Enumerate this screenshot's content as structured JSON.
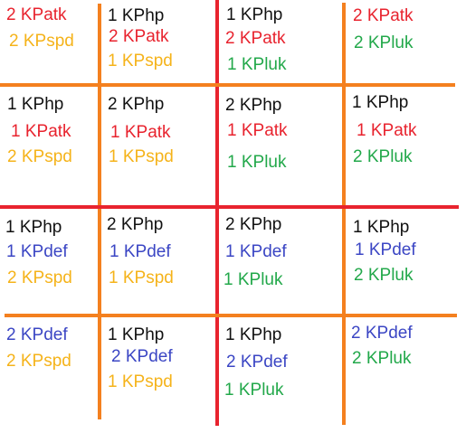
{
  "colors": {
    "KPhp": "#111111",
    "KPatk": "#e8232e",
    "KPspd": "#f5b31a",
    "KPluk": "#22a84a",
    "KPdef": "#3b46c4",
    "orange_line": "#f4801f",
    "red_line": "#e8232e"
  },
  "cells": [
    [
      {
        "lines": [
          {
            "text": "2 KPatk",
            "stat": "KPatk"
          },
          {
            "text": "2 KPspd",
            "stat": "KPspd"
          }
        ]
      },
      {
        "lines": [
          {
            "text": "1 KPhp",
            "stat": "KPhp"
          },
          {
            "text": "2 KPatk",
            "stat": "KPatk"
          },
          {
            "text": "1 KPspd",
            "stat": "KPspd"
          }
        ]
      },
      {
        "lines": [
          {
            "text": "1 KPhp",
            "stat": "KPhp"
          },
          {
            "text": "2 KPatk",
            "stat": "KPatk"
          },
          {
            "text": "1 KPluk",
            "stat": "KPluk"
          }
        ]
      },
      {
        "lines": [
          {
            "text": "2 KPatk",
            "stat": "KPatk"
          },
          {
            "text": "2 KPluk",
            "stat": "KPluk"
          }
        ]
      }
    ],
    [
      {
        "lines": [
          {
            "text": "1 KPhp",
            "stat": "KPhp"
          },
          {
            "text": "1 KPatk",
            "stat": "KPatk"
          },
          {
            "text": "2 KPspd",
            "stat": "KPspd"
          }
        ]
      },
      {
        "lines": [
          {
            "text": "2 KPhp",
            "stat": "KPhp"
          },
          {
            "text": "1 KPatk",
            "stat": "KPatk"
          },
          {
            "text": "1 KPspd",
            "stat": "KPspd"
          }
        ]
      },
      {
        "lines": [
          {
            "text": "2 KPhp",
            "stat": "KPhp"
          },
          {
            "text": "1 KPatk",
            "stat": "KPatk"
          },
          {
            "text": "1 KPluk",
            "stat": "KPluk"
          }
        ]
      },
      {
        "lines": [
          {
            "text": "1 KPhp",
            "stat": "KPhp"
          },
          {
            "text": "1 KPatk",
            "stat": "KPatk"
          },
          {
            "text": "2 KPluk",
            "stat": "KPluk"
          }
        ]
      }
    ],
    [
      {
        "lines": [
          {
            "text": "1 KPhp",
            "stat": "KPhp"
          },
          {
            "text": "1 KPdef",
            "stat": "KPdef"
          },
          {
            "text": "2 KPspd",
            "stat": "KPspd"
          }
        ]
      },
      {
        "lines": [
          {
            "text": "2 KPhp",
            "stat": "KPhp"
          },
          {
            "text": "1 KPdef",
            "stat": "KPdef"
          },
          {
            "text": "1 KPspd",
            "stat": "KPspd"
          }
        ]
      },
      {
        "lines": [
          {
            "text": "2 KPhp",
            "stat": "KPhp"
          },
          {
            "text": "1 KPdef",
            "stat": "KPdef"
          },
          {
            "text": "1 KPluk",
            "stat": "KPluk"
          }
        ]
      },
      {
        "lines": [
          {
            "text": "1 KPhp",
            "stat": "KPhp"
          },
          {
            "text": "1 KPdef",
            "stat": "KPdef"
          },
          {
            "text": "2 KPluk",
            "stat": "KPluk"
          }
        ]
      }
    ],
    [
      {
        "lines": [
          {
            "text": "2 KPdef",
            "stat": "KPdef"
          },
          {
            "text": "2 KPspd",
            "stat": "KPspd"
          }
        ]
      },
      {
        "lines": [
          {
            "text": "1 KPhp",
            "stat": "KPhp"
          },
          {
            "text": "2 KPdef",
            "stat": "KPdef"
          },
          {
            "text": "1 KPspd",
            "stat": "KPspd"
          }
        ]
      },
      {
        "lines": [
          {
            "text": "1 KPhp",
            "stat": "KPhp"
          },
          {
            "text": "2 KPdef",
            "stat": "KPdef"
          },
          {
            "text": "1 KPluk",
            "stat": "KPluk"
          }
        ]
      },
      {
        "lines": [
          {
            "text": "2 KPdef",
            "stat": "KPdef"
          },
          {
            "text": "2 KPluk",
            "stat": "KPluk"
          }
        ]
      }
    ]
  ]
}
